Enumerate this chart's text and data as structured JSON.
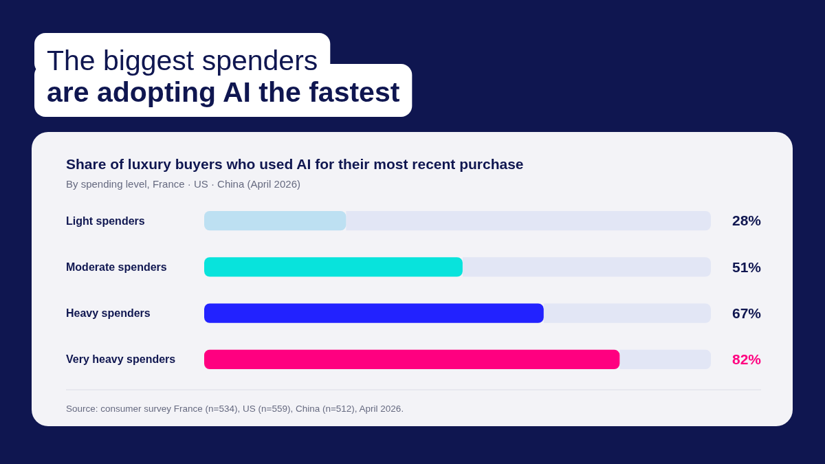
{
  "chart_data": {
    "type": "bar",
    "orientation": "horizontal",
    "title": "Share of luxury buyers who used AI for their most recent purchase",
    "subtitle": "By spending level, France · US · China (April 2026)",
    "categories": [
      "Light spenders",
      "Moderate spenders",
      "Heavy spenders",
      "Very heavy spenders"
    ],
    "values": [
      28,
      51,
      67,
      82
    ],
    "colors": [
      "#bde0f2",
      "#08e3dc",
      "#2222ff",
      "#ff0080"
    ],
    "xlim": [
      0,
      100
    ],
    "tick_labels": "y",
    "value_labels": [
      "28%",
      "51%",
      "67%",
      "82%"
    ],
    "annotations": [
      "The biggest spenders\nare adopting AI the fastest",
      "Source: consumer survey France (n=534), US (n=559), China (n=512), April 2026."
    ]
  }
}
